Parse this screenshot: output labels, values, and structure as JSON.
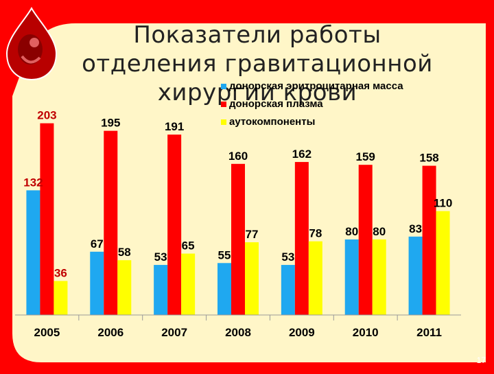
{
  "slide": {
    "title": "Показатели работы отделения гравитационной хирургии крови",
    "page_number": "17",
    "colors": {
      "frame": "#ff0000",
      "background": "#fff6c8",
      "drop": "#c40000"
    }
  },
  "chart_data": {
    "type": "bar",
    "categories": [
      "2005",
      "2006",
      "2007",
      "2008",
      "2009",
      "2010",
      "2011"
    ],
    "series": [
      {
        "name": "донорская эритроцитарная масса",
        "color": "#1fa8f0",
        "values": [
          132,
          67,
          53,
          55,
          53,
          80,
          83
        ]
      },
      {
        "name": "донорская плазма",
        "color": "#ff0000",
        "values": [
          203,
          195,
          191,
          160,
          162,
          159,
          158
        ]
      },
      {
        "name": "аутокомпоненты",
        "color": "#ffff00",
        "values": [
          36,
          58,
          65,
          77,
          78,
          80,
          110
        ]
      }
    ],
    "ylim": [
      0,
      210
    ],
    "grid": false,
    "legend": "top-right",
    "data_label_color": "#000000",
    "first_year_data_label_color": "#c00000"
  }
}
